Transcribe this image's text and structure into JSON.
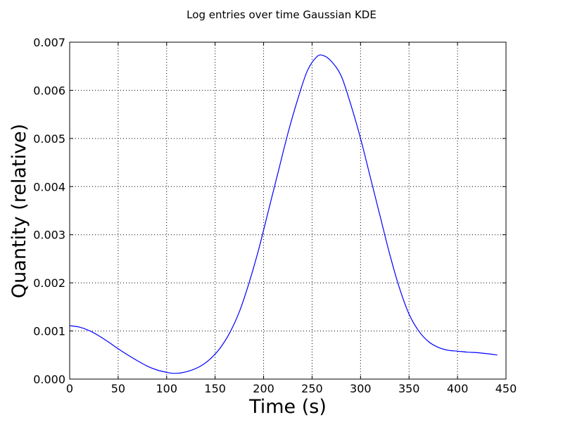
{
  "chart_data": {
    "type": "line",
    "title": "Log entries over time Gaussian KDE",
    "xlabel": "Time (s)",
    "ylabel": "Quantity (relative)",
    "xlim": [
      0,
      450
    ],
    "ylim": [
      0,
      0.007
    ],
    "x_ticks": [
      "0",
      "50",
      "100",
      "150",
      "200",
      "250",
      "300",
      "350",
      "400",
      "450"
    ],
    "y_ticks": [
      "0.000",
      "0.001",
      "0.002",
      "0.003",
      "0.004",
      "0.005",
      "0.006",
      "0.007"
    ],
    "grid": true,
    "series": [
      {
        "color": "#0000ff",
        "x": [
          0,
          10,
          20,
          30,
          40,
          50,
          60,
          70,
          80,
          90,
          100,
          107,
          115,
          125,
          135,
          145,
          155,
          165,
          175,
          185,
          195,
          205,
          215,
          225,
          235,
          245,
          255,
          262,
          270,
          280,
          290,
          300,
          310,
          320,
          330,
          340,
          350,
          360,
          370,
          380,
          390,
          400,
          410,
          420,
          430,
          441
        ],
        "y": [
          0.00111,
          0.00108,
          0.00101,
          0.0009,
          0.00077,
          0.00063,
          0.0005,
          0.00038,
          0.00027,
          0.00019,
          0.00014,
          0.00012,
          0.00013,
          0.00018,
          0.00027,
          0.00042,
          0.00064,
          0.00096,
          0.0014,
          0.002,
          0.0027,
          0.0035,
          0.0043,
          0.0051,
          0.0058,
          0.0064,
          0.0067,
          0.00672,
          0.0066,
          0.0063,
          0.0057,
          0.005,
          0.0042,
          0.0034,
          0.0026,
          0.0019,
          0.00135,
          0.001,
          0.00078,
          0.00066,
          0.0006,
          0.00058,
          0.00056,
          0.00055,
          0.00053,
          0.0005
        ]
      }
    ]
  }
}
